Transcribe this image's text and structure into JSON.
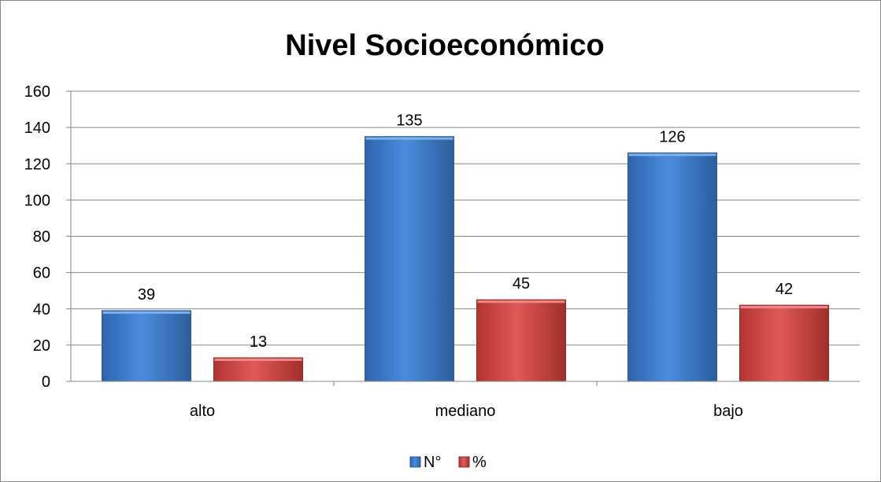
{
  "chart_data": {
    "type": "bar",
    "title": "Nivel Socioeconómico",
    "categories": [
      "alto",
      "mediano",
      "bajo"
    ],
    "series": [
      {
        "name": "N°",
        "values": [
          39,
          135,
          126
        ],
        "color": "#3F7FCC"
      },
      {
        "name": "%",
        "values": [
          13,
          45,
          42
        ],
        "color": "#C84A48"
      }
    ],
    "ylim": [
      0,
      160
    ],
    "yticks": [
      0,
      20,
      40,
      60,
      80,
      100,
      120,
      140,
      160
    ],
    "grid": true,
    "legend_position": "bottom",
    "data_labels": true
  }
}
